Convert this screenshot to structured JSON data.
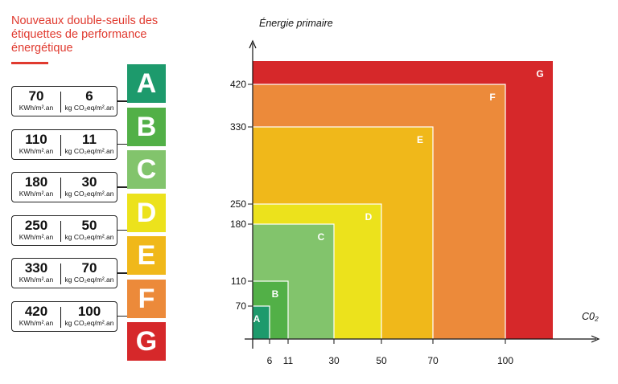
{
  "left_title": "Nouveaux double-seuils des étiquettes de performance énergétique",
  "thresholds": [
    {
      "kwh": "70",
      "kwh_unit": "KWh/m².an",
      "co2": "6",
      "co2_unit": "kg CO₂eq/m².an"
    },
    {
      "kwh": "110",
      "kwh_unit": "KWh/m².an",
      "co2": "11",
      "co2_unit": "kg CO₂eq/m².an"
    },
    {
      "kwh": "180",
      "kwh_unit": "KWh/m².an",
      "co2": "30",
      "co2_unit": "kg CO₂eq/m².an"
    },
    {
      "kwh": "250",
      "kwh_unit": "KWh/m².an",
      "co2": "50",
      "co2_unit": "kg CO₂eq/m².an"
    },
    {
      "kwh": "330",
      "kwh_unit": "KWh/m².an",
      "co2": "70",
      "co2_unit": "kg CO₂eq/m².an"
    },
    {
      "kwh": "420",
      "kwh_unit": "KWh/m².an",
      "co2": "100",
      "co2_unit": "kg CO₂eq/m².an"
    }
  ],
  "classes": [
    {
      "letter": "A",
      "color": "#1d9a6c"
    },
    {
      "letter": "B",
      "color": "#52b047"
    },
    {
      "letter": "C",
      "color": "#82c46c"
    },
    {
      "letter": "D",
      "color": "#ece21c"
    },
    {
      "letter": "E",
      "color": "#f0b81a"
    },
    {
      "letter": "F",
      "color": "#ec8a3a"
    },
    {
      "letter": "G",
      "color": "#d6282a"
    }
  ],
  "chart_data": {
    "type": "area",
    "ylabel": "Énergie primaire",
    "xlabel": "C0₂",
    "x_ticks": [
      6,
      11,
      30,
      50,
      70,
      100
    ],
    "y_ticks": [
      70,
      110,
      180,
      250,
      330,
      420
    ],
    "regions": [
      {
        "label": "G",
        "x_max": null,
        "y_max": null,
        "color": "#d6282a"
      },
      {
        "label": "F",
        "x_max": 100,
        "y_max": 420,
        "color": "#ec8a3a"
      },
      {
        "label": "E",
        "x_max": 70,
        "y_max": 330,
        "color": "#f0b81a"
      },
      {
        "label": "D",
        "x_max": 50,
        "y_max": 250,
        "color": "#ece21c"
      },
      {
        "label": "C",
        "x_max": 30,
        "y_max": 180,
        "color": "#82c46c"
      },
      {
        "label": "B",
        "x_max": 11,
        "y_max": 110,
        "color": "#52b047"
      },
      {
        "label": "A",
        "x_max": 6,
        "y_max": 70,
        "color": "#1d9a6c"
      }
    ]
  }
}
